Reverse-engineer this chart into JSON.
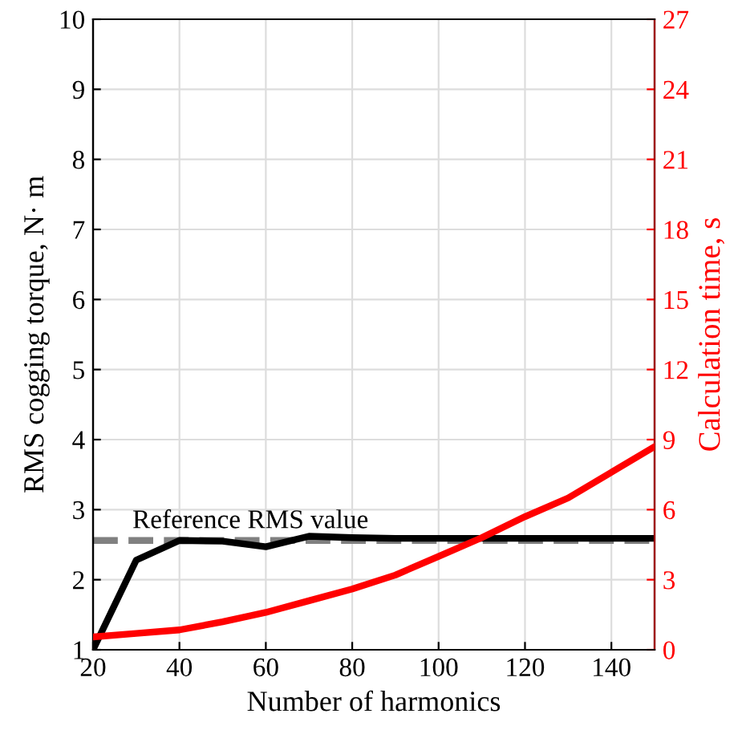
{
  "chart_data": {
    "type": "line",
    "xlabel": "Number of harmonics",
    "ylabel": "RMS cogging torque, N· m",
    "y2label": "Calculation time, s",
    "x": [
      20,
      30,
      40,
      50,
      60,
      70,
      80,
      90,
      100,
      110,
      120,
      130,
      140,
      150
    ],
    "series": [
      {
        "color": "#000000",
        "values": [
          1.0,
          2.28,
          2.56,
          2.55,
          2.47,
          2.62,
          2.6,
          2.59,
          2.59,
          2.59,
          2.59,
          2.59,
          2.59,
          2.59
        ]
      },
      {
        "color": "#ff0000",
        "axis": "y2",
        "values": [
          0.55,
          0.7,
          0.85,
          1.2,
          1.6,
          2.1,
          2.6,
          3.2,
          4.0,
          4.8,
          5.7,
          6.5,
          7.6,
          8.7
        ]
      }
    ],
    "ref_lines": [
      {
        "axis": "y",
        "value": 2.56,
        "label": "Reference RMS value",
        "color": "#808080",
        "line_style": "dashed"
      }
    ],
    "xlim": [
      20,
      150
    ],
    "xticks": [
      20,
      40,
      60,
      80,
      100,
      120,
      140
    ],
    "ylim": [
      1,
      10
    ],
    "yticks": [
      1,
      2,
      3,
      4,
      5,
      6,
      7,
      8,
      9,
      10
    ],
    "y2lim": [
      0,
      27
    ],
    "y2ticks": [
      0,
      3,
      6,
      9,
      12,
      15,
      18,
      21,
      24,
      27
    ],
    "grid": true,
    "legend": false,
    "marker": "none",
    "line_style": "solid"
  }
}
